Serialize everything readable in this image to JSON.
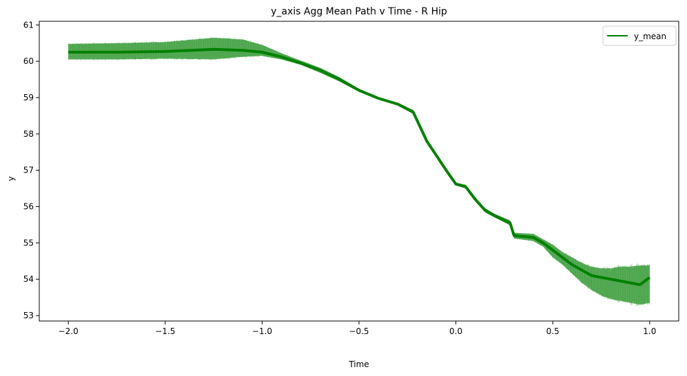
{
  "colors": {
    "line": "#008000",
    "band": "#4da64d",
    "axes": "#000000",
    "background": "#ffffff",
    "legend_border": "#cccccc"
  },
  "chart_data": {
    "type": "line",
    "title": "y_axis Agg Mean Path v Time - R Hip",
    "xlabel": "Time",
    "ylabel": "y",
    "xlim": [
      -2.15,
      1.15
    ],
    "ylim": [
      52.85,
      61.1
    ],
    "xticks": [
      -2.0,
      -1.5,
      -1.0,
      -0.5,
      0.0,
      0.5,
      1.0
    ],
    "xtick_labels": [
      "−2.0",
      "−1.5",
      "−1.0",
      "−0.5",
      "0.0",
      "0.5",
      "1.0"
    ],
    "yticks": [
      53,
      54,
      55,
      56,
      57,
      58,
      59,
      60,
      61
    ],
    "ytick_labels": [
      "53",
      "54",
      "55",
      "56",
      "57",
      "58",
      "59",
      "60",
      "61"
    ],
    "grid": false,
    "legend": {
      "placement": "top-right",
      "entries": [
        "y_mean"
      ]
    },
    "series": [
      {
        "name": "y_mean",
        "x": [
          -2.0,
          -1.75,
          -1.5,
          -1.25,
          -1.1,
          -1.0,
          -0.9,
          -0.8,
          -0.7,
          -0.6,
          -0.5,
          -0.4,
          -0.3,
          -0.22,
          -0.15,
          -0.1,
          -0.05,
          0.0,
          0.05,
          0.1,
          0.15,
          0.2,
          0.28,
          0.3,
          0.4,
          0.45,
          0.5,
          0.55,
          0.6,
          0.65,
          0.7,
          0.75,
          0.8,
          0.85,
          0.9,
          0.95,
          1.0
        ],
        "y": [
          60.25,
          60.25,
          60.27,
          60.33,
          60.3,
          60.25,
          60.12,
          59.95,
          59.75,
          59.5,
          59.2,
          58.98,
          58.82,
          58.6,
          57.8,
          57.4,
          57.0,
          56.62,
          56.55,
          56.2,
          55.9,
          55.75,
          55.55,
          55.2,
          55.15,
          55.0,
          54.8,
          54.6,
          54.4,
          54.25,
          54.1,
          54.05,
          54.0,
          53.95,
          53.9,
          53.85,
          54.05
        ],
        "band_lower": [
          60.05,
          60.05,
          60.07,
          60.05,
          60.12,
          60.15,
          60.05,
          59.9,
          59.68,
          59.44,
          59.16,
          58.95,
          58.78,
          58.55,
          57.75,
          57.35,
          56.95,
          56.58,
          56.5,
          56.15,
          55.84,
          55.7,
          55.48,
          55.12,
          55.05,
          54.9,
          54.6,
          54.4,
          54.15,
          53.9,
          53.7,
          53.55,
          53.45,
          53.4,
          53.35,
          53.3,
          53.35
        ],
        "band_upper": [
          60.48,
          60.5,
          60.53,
          60.65,
          60.6,
          60.45,
          60.22,
          60.02,
          59.82,
          59.56,
          59.24,
          59.01,
          58.86,
          58.66,
          57.86,
          57.45,
          57.05,
          56.66,
          56.6,
          56.25,
          55.96,
          55.8,
          55.62,
          55.28,
          55.25,
          55.1,
          54.95,
          54.75,
          54.6,
          54.45,
          54.35,
          54.3,
          54.3,
          54.35,
          54.35,
          54.38,
          54.38
        ]
      }
    ]
  }
}
